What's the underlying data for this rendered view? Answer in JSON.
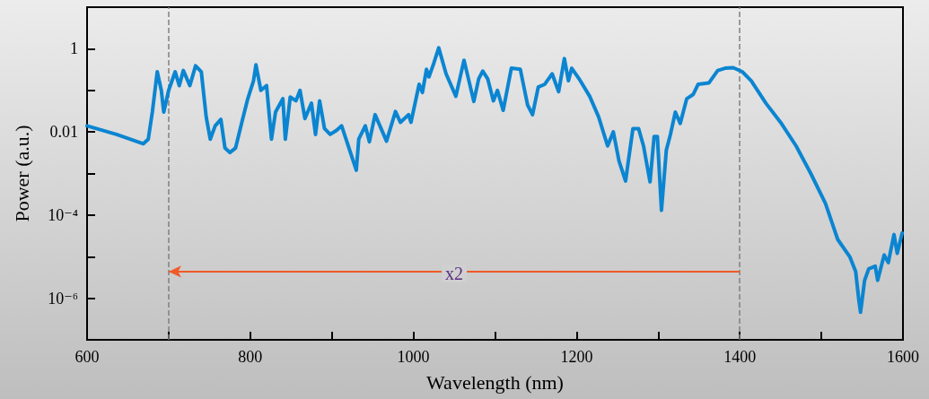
{
  "chart_data": {
    "type": "line",
    "xlabel": "Wavelength (nm)",
    "ylabel": "Power (a.u.)",
    "log": "y",
    "marker": "none",
    "line_style": "solid",
    "grid": false,
    "xlim": [
      600,
      1600
    ],
    "ylim": [
      1e-07,
      10
    ],
    "xticks": [
      600,
      {
        "value": 700,
        "label": null
      },
      800,
      {
        "value": 900,
        "label": null
      },
      1000,
      {
        "value": 1100,
        "label": null
      },
      1200,
      {
        "value": 1300,
        "label": null
      },
      1400,
      {
        "value": 1500,
        "label": null
      },
      1600
    ],
    "yticks": [
      {
        "value": 1e-06,
        "label": "10⁻⁶"
      },
      {
        "value": 1e-05,
        "label": null
      },
      {
        "value": 0.0001,
        "label": "10⁻⁴"
      },
      {
        "value": 0.001,
        "label": null
      },
      0.01,
      {
        "value": 0.1,
        "label": null
      },
      1
    ],
    "ref_lines": [
      {
        "axis": "x",
        "value": 700,
        "color": "#808080",
        "line_style": "dashed"
      },
      {
        "axis": "x",
        "value": 1400,
        "color": "#808080",
        "line_style": "dashed"
      }
    ],
    "annotations": [
      "x2"
    ],
    "series": [
      {
        "color": "#0b85d1",
        "x": [
          600,
          636,
          669,
          675,
          680,
          686,
          691,
          694,
          700,
          708,
          713,
          718,
          726,
          733,
          740,
          746,
          751,
          757,
          764,
          769,
          775,
          782,
          790,
          797,
          804,
          807,
          813,
          820,
          826,
          831,
          840,
          843,
          849,
          856,
          861,
          867,
          875,
          880,
          885,
          891,
          898,
          906,
          912,
          930,
          933,
          941,
          946,
          953,
          967,
          978,
          984,
          994,
          997,
          1007,
          1011,
          1016,
          1019,
          1025,
          1031,
          1040,
          1052,
          1062,
          1074,
          1080,
          1085,
          1091,
          1098,
          1103,
          1110,
          1120,
          1131,
          1140,
          1146,
          1153,
          1161,
          1170,
          1178,
          1185,
          1190,
          1194,
          1203,
          1216,
          1227,
          1238,
          1245,
          1252,
          1260,
          1269,
          1276,
          1282,
          1290,
          1295,
          1299,
          1304,
          1310,
          1315,
          1321,
          1327,
          1335,
          1343,
          1349,
          1362,
          1373,
          1382,
          1392,
          1403,
          1414,
          1432,
          1450,
          1469,
          1487,
          1505,
          1520,
          1535,
          1542,
          1546,
          1548,
          1553,
          1558,
          1566,
          1569,
          1577,
          1582,
          1589,
          1593,
          1599
        ],
        "values": [
          0.014,
          0.0087,
          0.0052,
          0.0067,
          0.03,
          0.28,
          0.1,
          0.03,
          0.1,
          0.28,
          0.13,
          0.3,
          0.13,
          0.39,
          0.28,
          0.023,
          0.0067,
          0.014,
          0.02,
          0.0041,
          0.0032,
          0.0041,
          0.018,
          0.063,
          0.17,
          0.41,
          0.1,
          0.13,
          0.0067,
          0.03,
          0.063,
          0.0067,
          0.069,
          0.056,
          0.1,
          0.021,
          0.049,
          0.0087,
          0.056,
          0.012,
          0.0087,
          0.011,
          0.014,
          0.0012,
          0.0067,
          0.014,
          0.0058,
          0.026,
          0.006,
          0.031,
          0.017,
          0.026,
          0.017,
          0.14,
          0.089,
          0.32,
          0.21,
          0.45,
          1.05,
          0.25,
          0.072,
          0.53,
          0.054,
          0.19,
          0.29,
          0.19,
          0.056,
          0.1,
          0.033,
          0.34,
          0.32,
          0.044,
          0.026,
          0.12,
          0.14,
          0.25,
          0.093,
          0.58,
          0.17,
          0.34,
          0.19,
          0.072,
          0.023,
          0.0046,
          0.01,
          0.002,
          0.00066,
          0.012,
          0.012,
          0.0046,
          0.00063,
          0.0078,
          0.0078,
          0.00013,
          0.0037,
          0.0087,
          0.03,
          0.016,
          0.063,
          0.08,
          0.14,
          0.15,
          0.3,
          0.34,
          0.35,
          0.28,
          0.17,
          0.049,
          0.017,
          0.0046,
          0.001,
          0.00019,
          2.6e-05,
          9.8e-06,
          4.4e-06,
          8.8e-07,
          4.6e-07,
          2.7e-06,
          5.1e-06,
          5.9e-06,
          2.7e-06,
          1.1e-05,
          7.2e-06,
          3.4e-05,
          1.2e-05,
          3.7e-05
        ]
      }
    ]
  }
}
